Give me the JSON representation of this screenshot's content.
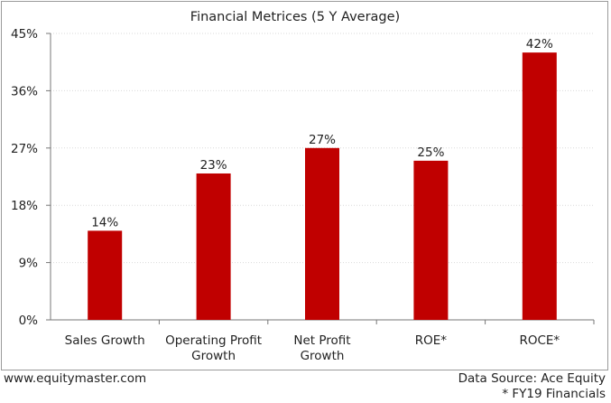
{
  "chart_data": {
    "type": "bar",
    "title": "Financial Metrices (5 Y Average)",
    "categories": [
      [
        "Sales Growth"
      ],
      [
        "Operating Profit",
        "Growth"
      ],
      [
        "Net Profit",
        "Growth"
      ],
      [
        "ROE*"
      ],
      [
        "ROCE*"
      ]
    ],
    "values": [
      14,
      23,
      27,
      25,
      42
    ],
    "data_labels": [
      "14%",
      "23%",
      "27%",
      "25%",
      "42%"
    ],
    "ylim": [
      0,
      45
    ],
    "yticks": [
      0,
      9,
      18,
      27,
      36,
      45
    ],
    "ytick_labels": [
      "0%",
      "9%",
      "18%",
      "27%",
      "36%",
      "45%"
    ],
    "xlabel": "",
    "ylabel": "",
    "grid": true,
    "bar_color": "#c00000"
  },
  "footer": {
    "website": "www.equitymaster.com",
    "source": "Data Source: Ace Equity",
    "note": "* FY19 Financials"
  }
}
